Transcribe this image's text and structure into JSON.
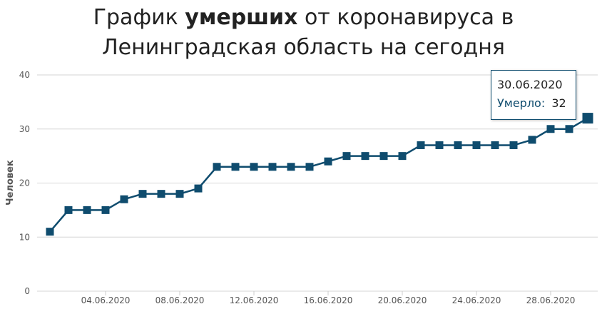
{
  "chart_data": {
    "type": "line",
    "title": {
      "before": "График",
      "bold": "умерших",
      "after": "от коронавируса в Ленинградская область на сегодня"
    },
    "y_label": "Человек",
    "x": [
      "01.06.2020",
      "02.06.2020",
      "03.06.2020",
      "04.06.2020",
      "05.06.2020",
      "06.06.2020",
      "07.06.2020",
      "08.06.2020",
      "09.06.2020",
      "10.06.2020",
      "11.06.2020",
      "12.06.2020",
      "13.06.2020",
      "14.06.2020",
      "15.06.2020",
      "16.06.2020",
      "17.06.2020",
      "18.06.2020",
      "19.06.2020",
      "20.06.2020",
      "21.06.2020",
      "22.06.2020",
      "23.06.2020",
      "24.06.2020",
      "25.06.2020",
      "26.06.2020",
      "27.06.2020",
      "28.06.2020",
      "29.06.2020",
      "30.06.2020"
    ],
    "series": [
      {
        "name": "Умерло:",
        "color": "#0f4c6e",
        "values": [
          11,
          15,
          15,
          15,
          17,
          18,
          18,
          18,
          19,
          23,
          23,
          23,
          23,
          23,
          23,
          24,
          25,
          25,
          25,
          25,
          27,
          27,
          27,
          27,
          27,
          27,
          28,
          30,
          30,
          32
        ]
      }
    ],
    "xticks": [
      "04.06.2020",
      "08.06.2020",
      "12.06.2020",
      "16.06.2020",
      "20.06.2020",
      "24.06.2020",
      "28.06.2020"
    ],
    "ylim": [
      0,
      40
    ],
    "yticks": [
      0,
      10,
      20,
      30,
      40
    ],
    "grid": true,
    "tooltip_index": 29
  }
}
